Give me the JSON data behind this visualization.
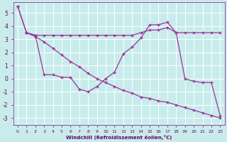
{
  "xlabel": "Windchill (Refroidissement éolien,°C)",
  "background_color": "#c8ecec",
  "grid_color": "#ffffff",
  "line_color": "#993399",
  "xlim_min": -0.5,
  "xlim_max": 23.5,
  "ylim_min": -3.5,
  "ylim_max": 5.8,
  "xticks": [
    0,
    1,
    2,
    3,
    4,
    5,
    6,
    7,
    8,
    9,
    10,
    11,
    12,
    13,
    14,
    15,
    16,
    17,
    18,
    19,
    20,
    21,
    22,
    23
  ],
  "yticks": [
    -3,
    -2,
    -1,
    0,
    1,
    2,
    3,
    4,
    5
  ],
  "line1_x": [
    0,
    1,
    2,
    3,
    4,
    5,
    6,
    7,
    8,
    9,
    10,
    11,
    12,
    13,
    14,
    15,
    16,
    17,
    18,
    19,
    20,
    21,
    22,
    23
  ],
  "line1_y": [
    5.5,
    3.5,
    3.3,
    3.3,
    3.3,
    3.3,
    3.3,
    3.3,
    3.3,
    3.3,
    3.3,
    3.3,
    3.3,
    3.3,
    3.5,
    3.7,
    3.7,
    3.9,
    3.5,
    3.5,
    3.5,
    3.5,
    3.5,
    3.5
  ],
  "line2_x": [
    1,
    2,
    3,
    4,
    5,
    6,
    7,
    8,
    9,
    10,
    11,
    12,
    13,
    14,
    15,
    16,
    17,
    18,
    19,
    20,
    21,
    22,
    23
  ],
  "line2_y": [
    3.5,
    3.3,
    0.3,
    0.3,
    0.1,
    0.1,
    -0.8,
    -1.0,
    -0.6,
    0.0,
    0.5,
    1.9,
    2.4,
    3.1,
    4.1,
    4.1,
    4.3,
    3.5,
    0.0,
    -0.2,
    -0.3,
    -0.3,
    -2.8
  ],
  "line3_x": [
    0,
    1,
    2,
    3,
    4,
    5,
    6,
    7,
    8,
    9,
    10,
    11,
    12,
    13,
    14,
    15,
    16,
    17,
    18,
    19,
    20,
    21,
    22,
    23
  ],
  "line3_y": [
    5.5,
    3.5,
    3.2,
    2.8,
    2.3,
    1.8,
    1.3,
    0.9,
    0.4,
    0.0,
    -0.3,
    -0.6,
    -0.9,
    -1.1,
    -1.4,
    -1.5,
    -1.7,
    -1.8,
    -2.0,
    -2.2,
    -2.4,
    -2.6,
    -2.8,
    -3.0
  ]
}
